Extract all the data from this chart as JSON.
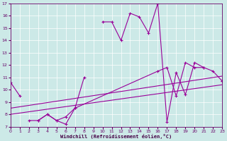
{
  "title": "",
  "xlabel": "Windchill (Refroidissement éolien,°C)",
  "ylabel": "",
  "bg_color": "#cce9e7",
  "line_color": "#990099",
  "grid_color": "#ffffff",
  "ylim": [
    7,
    17
  ],
  "xlim": [
    0,
    23
  ],
  "yticks": [
    7,
    8,
    9,
    10,
    11,
    12,
    13,
    14,
    15,
    16,
    17
  ],
  "xticks": [
    0,
    1,
    2,
    3,
    4,
    5,
    6,
    7,
    8,
    9,
    10,
    11,
    12,
    13,
    14,
    15,
    16,
    17,
    18,
    19,
    20,
    21,
    22,
    23
  ],
  "series": [
    {
      "segments": [
        {
          "x": [
            0,
            1
          ],
          "y": [
            10.6,
            9.5
          ]
        },
        {
          "x": [
            3,
            4,
            5,
            6,
            7,
            8
          ],
          "y": [
            7.5,
            8.0,
            7.5,
            7.2,
            8.5,
            11.0
          ]
        },
        {
          "x": [
            10,
            11,
            12,
            13,
            14,
            15,
            16
          ],
          "y": [
            15.5,
            15.5,
            14.0,
            16.2,
            15.9,
            14.6,
            17.0
          ]
        }
      ]
    },
    {
      "segments": [
        {
          "x": [
            16,
            17,
            18,
            19,
            20,
            21
          ],
          "y": [
            17.0,
            7.4,
            11.4,
            9.6,
            12.2,
            11.8
          ]
        },
        {
          "x": [
            23
          ],
          "y": [
            10.7
          ]
        }
      ]
    },
    {
      "segments": [
        {
          "x": [
            0,
            23
          ],
          "y": [
            8.1,
            10.5
          ]
        }
      ]
    },
    {
      "segments": [
        {
          "x": [
            0,
            23
          ],
          "y": [
            8.5,
            11.2
          ]
        }
      ]
    },
    {
      "segments": [
        {
          "x": [
            2,
            3,
            4,
            5,
            6,
            7,
            16,
            17,
            18,
            19,
            20,
            21,
            22,
            23
          ],
          "y": [
            7.5,
            7.5,
            8.0,
            7.5,
            7.8,
            8.5,
            11.5,
            11.8,
            9.5,
            12.2,
            11.8,
            11.8,
            11.5,
            10.7
          ]
        }
      ]
    }
  ]
}
